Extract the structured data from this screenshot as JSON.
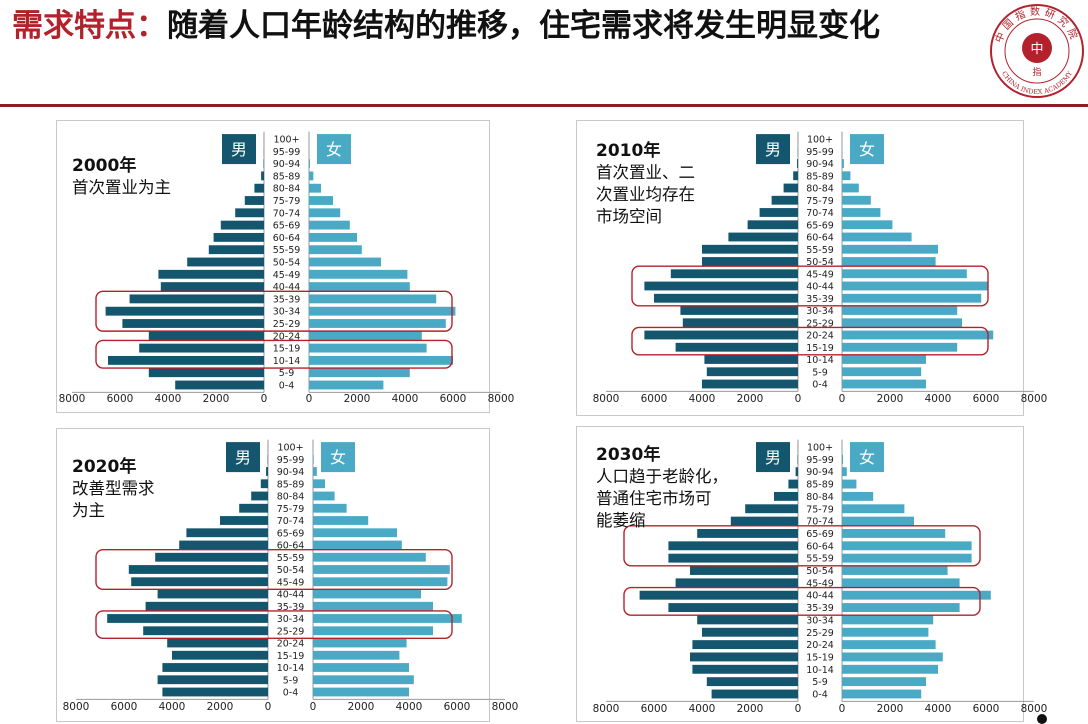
{
  "title": {
    "accent": "需求特点：",
    "rest": "随着人口年龄结构的推移，住宅需求将发生明显变化"
  },
  "logo": {
    "ring_text": "中国指数研究院",
    "english": "CHINA INDEX ACADEMY",
    "center": "中",
    "center2": "指"
  },
  "colors": {
    "male": "#14566e",
    "female": "#4aaac6",
    "highlight": "#b3222c",
    "title_rule": "#8b1e24"
  },
  "age_groups": [
    "0-4",
    "5-9",
    "10-14",
    "15-19",
    "20-24",
    "25-29",
    "30-34",
    "35-39",
    "40-44",
    "45-49",
    "50-54",
    "55-59",
    "60-64",
    "65-69",
    "70-74",
    "75-79",
    "80-84",
    "85-89",
    "90-94",
    "95-99",
    "100+"
  ],
  "chart_data": [
    {
      "type": "bar",
      "subtype": "population-pyramid",
      "year_label": "2000年",
      "subtitle": [
        "首次置业为主"
      ],
      "male_label": "男",
      "female_label": "女",
      "x_ticks_left": [
        "8000",
        "6000",
        "4000",
        "2000",
        "0"
      ],
      "x_ticks_right": [
        "0",
        "2000",
        "4000",
        "6000",
        "8000"
      ],
      "xlim": [
        0,
        8000
      ],
      "male": [
        3700,
        4800,
        6500,
        5200,
        4800,
        5900,
        6600,
        5600,
        4300,
        4400,
        3200,
        2300,
        2100,
        1800,
        1200,
        800,
        400,
        120,
        20,
        5,
        2
      ],
      "female": [
        3100,
        4200,
        6000,
        4900,
        4700,
        5700,
        6100,
        5300,
        4200,
        4100,
        3000,
        2200,
        2000,
        1700,
        1300,
        1000,
        500,
        180,
        40,
        8,
        3
      ],
      "highlight_ranges": [
        [
          2,
          3
        ],
        [
          5,
          7
        ]
      ]
    },
    {
      "type": "bar",
      "subtype": "population-pyramid",
      "year_label": "2010年",
      "subtitle": [
        "首次置业、二",
        "次置业均存在",
        "市场空间"
      ],
      "male_label": "男",
      "female_label": "女",
      "x_ticks_left": [
        "8000",
        "6000",
        "4000",
        "2000",
        "0"
      ],
      "x_ticks_right": [
        "0",
        "2000",
        "4000",
        "6000",
        "8000"
      ],
      "xlim": [
        0,
        8000
      ],
      "male": [
        4000,
        3800,
        3900,
        5100,
        6400,
        4800,
        4900,
        6000,
        6400,
        5300,
        4000,
        4000,
        2900,
        2100,
        1600,
        1100,
        600,
        200,
        40,
        6,
        2
      ],
      "female": [
        3500,
        3300,
        3500,
        4800,
        6300,
        5000,
        4800,
        5800,
        6100,
        5200,
        3900,
        4000,
        2900,
        2100,
        1600,
        1200,
        700,
        350,
        80,
        12,
        3
      ],
      "highlight_ranges": [
        [
          3,
          4
        ],
        [
          7,
          9
        ]
      ]
    },
    {
      "type": "bar",
      "subtype": "population-pyramid",
      "year_label": "2020年",
      "subtitle": [
        "改善型需求",
        "为主"
      ],
      "male_label": "男",
      "female_label": "女",
      "x_ticks_left": [
        "8000",
        "6000",
        "4000",
        "2000",
        "0"
      ],
      "x_ticks_right": [
        "0",
        "2000",
        "4000",
        "6000",
        "8000"
      ],
      "xlim": [
        0,
        8000
      ],
      "male": [
        4400,
        4600,
        4400,
        4000,
        4200,
        5200,
        6700,
        5100,
        4600,
        5700,
        5800,
        4700,
        3700,
        3400,
        2000,
        1200,
        700,
        300,
        80,
        15,
        3
      ],
      "female": [
        4000,
        4200,
        4000,
        3600,
        3900,
        5000,
        6200,
        5000,
        4500,
        5600,
        5700,
        4700,
        3700,
        3500,
        2300,
        1400,
        900,
        500,
        160,
        30,
        5
      ],
      "highlight_ranges": [
        [
          5,
          6
        ],
        [
          9,
          11
        ]
      ]
    },
    {
      "type": "bar",
      "subtype": "population-pyramid",
      "year_label": "2030年",
      "subtitle": [
        "人口趋于老龄化，",
        "普通住宅市场可",
        "能萎缩"
      ],
      "male_label": "男",
      "female_label": "女",
      "x_ticks_left": [
        "8000",
        "6000",
        "4000",
        "2000",
        "0"
      ],
      "x_ticks_right": [
        "0",
        "2000",
        "4000",
        "6000",
        "8000"
      ],
      "xlim": [
        0,
        8000
      ],
      "male": [
        3600,
        3800,
        4400,
        4500,
        4400,
        4000,
        4200,
        5400,
        6600,
        5100,
        4500,
        5400,
        5400,
        4200,
        2800,
        2200,
        1000,
        400,
        100,
        20,
        4
      ],
      "female": [
        3300,
        3500,
        4000,
        4200,
        3900,
        3600,
        3800,
        4900,
        6200,
        4900,
        4400,
        5400,
        5400,
        4300,
        3000,
        2600,
        1300,
        600,
        200,
        40,
        6
      ],
      "highlight_ranges": [
        [
          7,
          8
        ],
        [
          11,
          13
        ]
      ]
    }
  ]
}
